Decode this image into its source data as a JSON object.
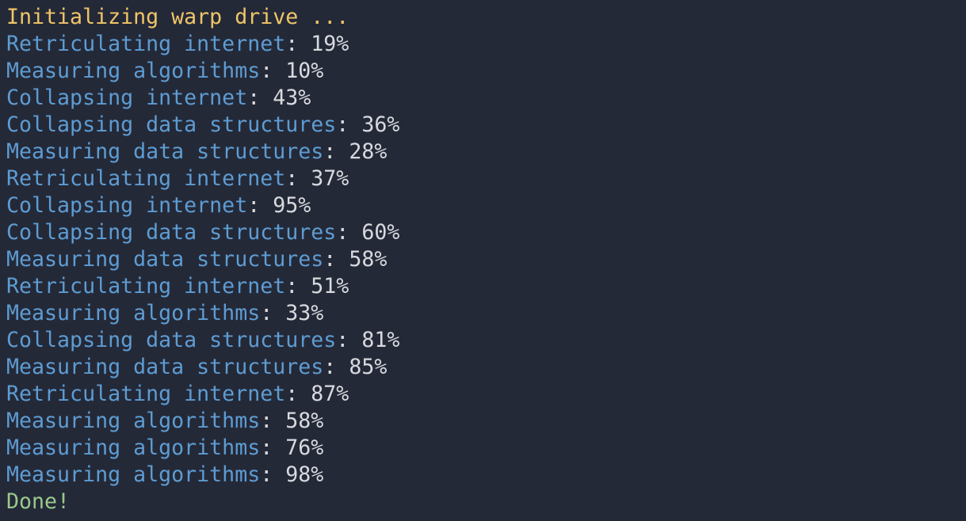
{
  "terminal": {
    "init_message": "Initializing warp drive ...",
    "separator": ": ",
    "progress": [
      {
        "label": "Retriculating internet",
        "value": "19%"
      },
      {
        "label": "Measuring algorithms",
        "value": "10%"
      },
      {
        "label": "Collapsing internet",
        "value": "43%"
      },
      {
        "label": "Collapsing data structures",
        "value": "36%"
      },
      {
        "label": "Measuring data structures",
        "value": "28%"
      },
      {
        "label": "Retriculating internet",
        "value": "37%"
      },
      {
        "label": "Collapsing internet",
        "value": "95%"
      },
      {
        "label": "Collapsing data structures",
        "value": "60%"
      },
      {
        "label": "Measuring data structures",
        "value": "58%"
      },
      {
        "label": "Retriculating internet",
        "value": "51%"
      },
      {
        "label": "Measuring algorithms",
        "value": "33%"
      },
      {
        "label": "Collapsing data structures",
        "value": "81%"
      },
      {
        "label": "Measuring data structures",
        "value": "85%"
      },
      {
        "label": "Retriculating internet",
        "value": "87%"
      },
      {
        "label": "Measuring algorithms",
        "value": "58%"
      },
      {
        "label": "Measuring algorithms",
        "value": "76%"
      },
      {
        "label": "Measuring algorithms",
        "value": "98%"
      }
    ],
    "done_message": "Done!",
    "colors": {
      "background": "#242938",
      "title": "#f0c568",
      "task": "#5e9cd2",
      "value": "#d8dade",
      "done": "#9aca8a"
    }
  }
}
